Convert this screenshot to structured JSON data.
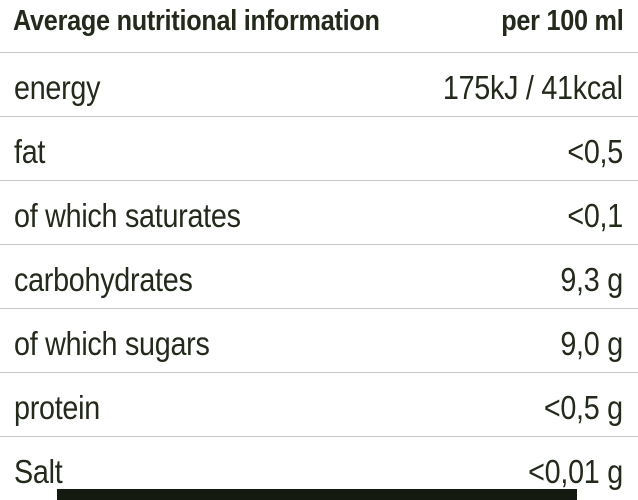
{
  "colors": {
    "background": "#ffffff",
    "text": "#232a1c",
    "divider": "#c9c9c7",
    "bottom_band": "#141a10"
  },
  "table": {
    "header": {
      "title": "Average nutritional information",
      "unit": "per 100 ml"
    },
    "rows": [
      {
        "label": "energy",
        "value": "175kJ / 41kcal"
      },
      {
        "label": "fat",
        "value": "<0,5"
      },
      {
        "label": "of which saturates",
        "value": "<0,1"
      },
      {
        "label": "carbohydrates",
        "value": "9,3 g"
      },
      {
        "label": "of which sugars",
        "value": "9,0 g"
      },
      {
        "label": "protein",
        "value": "<0,5 g"
      },
      {
        "label": "Salt",
        "value": "<0,01 g"
      }
    ]
  }
}
